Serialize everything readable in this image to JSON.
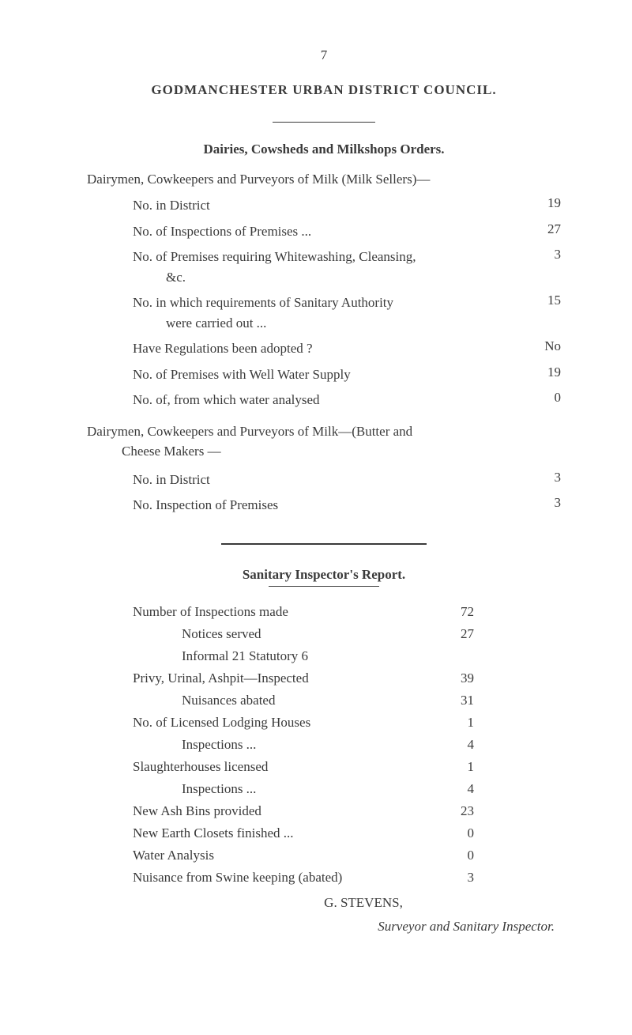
{
  "page_number": "7",
  "main_title": "GODMANCHESTER URBAN DISTRICT COUNCIL.",
  "section1": {
    "title": "Dairies, Cowsheds and Milkshops Orders.",
    "intro": "Dairymen, Cowkeepers and Purveyors of Milk (Milk Sellers)—",
    "rows": [
      {
        "label": "No. in District",
        "value": "19"
      },
      {
        "label": "No. of Inspections of Premises ...",
        "value": "27"
      },
      {
        "label": "No. of Premises requiring Whitewashing, Cleansing, &c.",
        "value": "3",
        "multiline": true,
        "cont": "&c."
      },
      {
        "label": "No. in which requirements of Sanitary Authority were carried out ...",
        "value": "15",
        "multiline": true,
        "cont": "were carried out ..."
      },
      {
        "label": "Have Regulations been adopted ?",
        "value": "No"
      },
      {
        "label": "No. of Premises with Well Water Supply",
        "value": "19"
      },
      {
        "label": "No. of, from which water analysed",
        "value": "0"
      }
    ],
    "sub_intro_l1": "Dairymen, Cowkeepers and Purveyors of Milk—(Butter and",
    "sub_intro_l2": "Cheese Makers —",
    "sub_rows": [
      {
        "label": "No. in District",
        "value": "3"
      },
      {
        "label": "No. Inspection of Premises",
        "value": "3"
      }
    ]
  },
  "section2": {
    "title": "Sanitary Inspector's Report.",
    "rows": [
      {
        "label": "Number of Inspections made",
        "value": "72",
        "indent": "main"
      },
      {
        "label": "Notices served",
        "value": "27",
        "indent": "sub"
      },
      {
        "label": "Informal 21       Statutory 6",
        "value": "",
        "indent": "sub"
      },
      {
        "label": "Privy, Urinal, Ashpit—Inspected",
        "value": "39",
        "indent": "main"
      },
      {
        "label": "Nuisances abated",
        "value": "31",
        "indent": "sub"
      },
      {
        "label": "No. of Licensed Lodging Houses",
        "value": "1",
        "indent": "main"
      },
      {
        "label": "Inspections ...",
        "value": "4",
        "indent": "sub"
      },
      {
        "label": "Slaughterhouses licensed",
        "value": "1",
        "indent": "main"
      },
      {
        "label": "Inspections ...",
        "value": "4",
        "indent": "sub"
      },
      {
        "label": "New Ash Bins provided",
        "value": "23",
        "indent": "main"
      },
      {
        "label": "New Earth Closets finished ...",
        "value": "0",
        "indent": "main"
      },
      {
        "label": "Water Analysis",
        "value": "0",
        "indent": "main"
      },
      {
        "label": "Nuisance from Swine keeping (abated)",
        "value": "3",
        "indent": "main"
      }
    ]
  },
  "signature": "G. STEVENS,",
  "surveyor": "Surveyor and Sanitary Inspector."
}
